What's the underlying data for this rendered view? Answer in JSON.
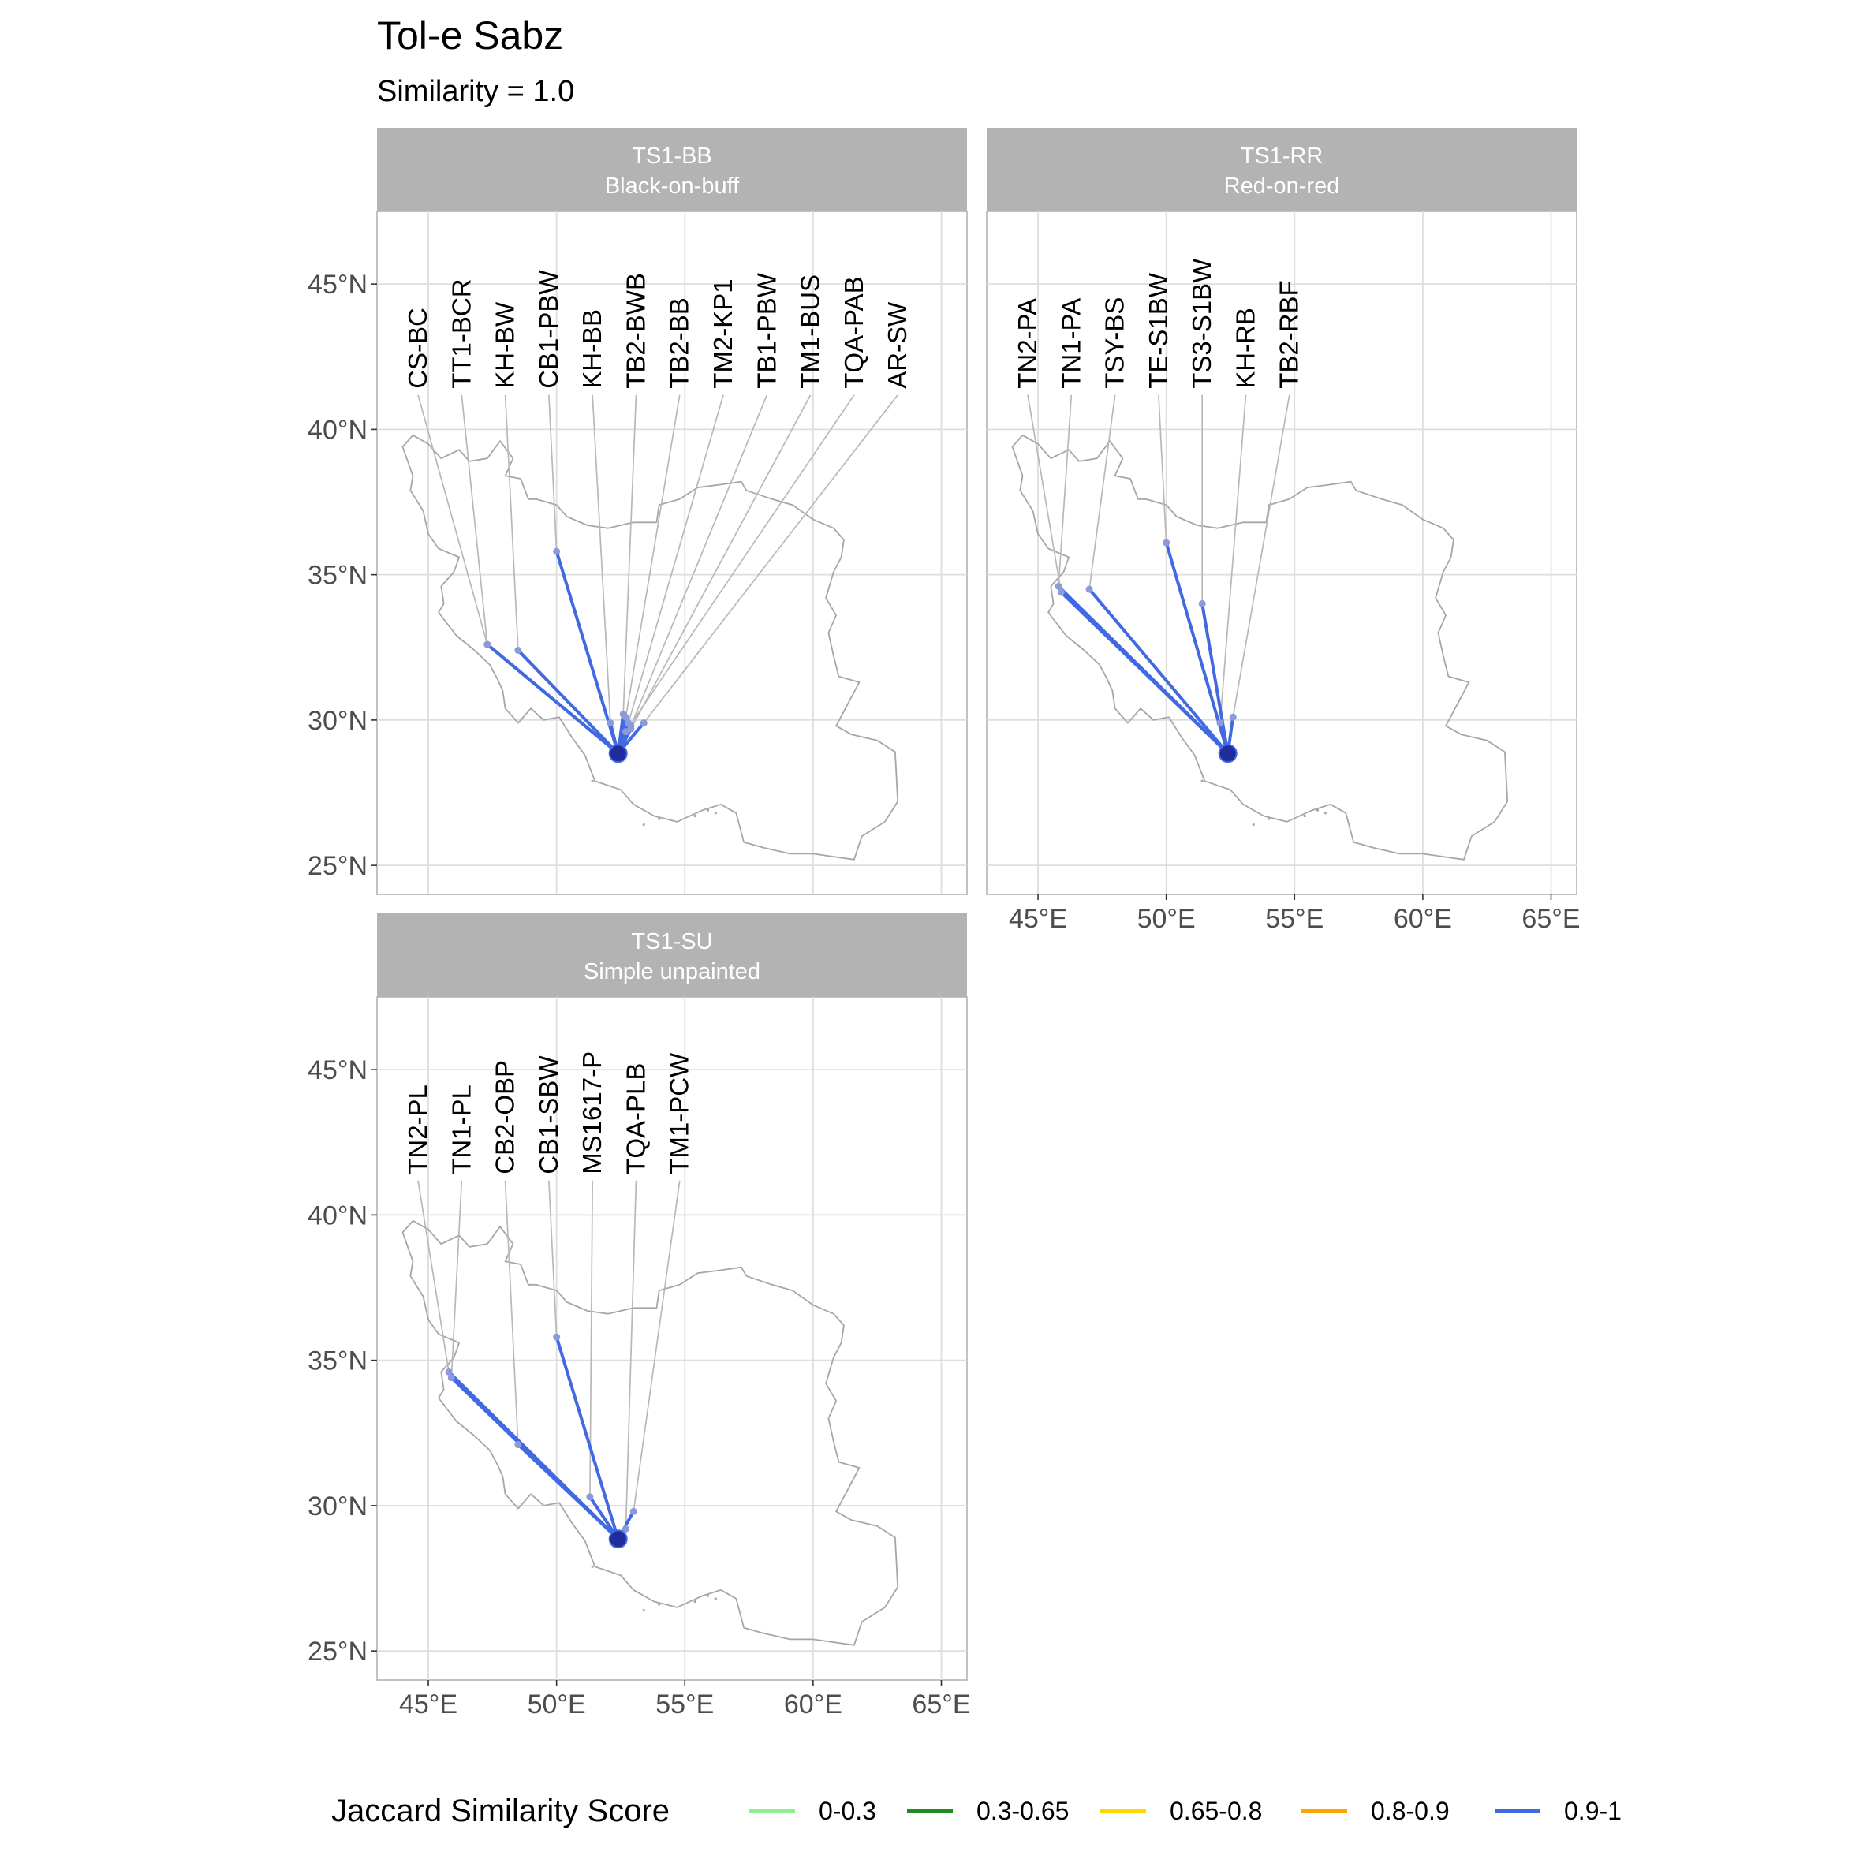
{
  "title": "Tol-e Sabz",
  "subtitle": "Similarity = 1.0",
  "map": {
    "x_ticks": [
      {
        "value": 45,
        "label": "45°E"
      },
      {
        "value": 50,
        "label": "50°E"
      },
      {
        "value": 55,
        "label": "55°E"
      },
      {
        "value": 60,
        "label": "60°E"
      },
      {
        "value": 65,
        "label": "65°E"
      }
    ],
    "y_ticks": [
      {
        "value": 25,
        "label": "25°N"
      },
      {
        "value": 30,
        "label": "30°N"
      },
      {
        "value": 35,
        "label": "35°N"
      },
      {
        "value": 40,
        "label": "40°N"
      },
      {
        "value": 45,
        "label": "45°N"
      }
    ],
    "lon_range": [
      43,
      66
    ],
    "lat_range": [
      24,
      47.5
    ],
    "focal_site": {
      "lon": 52.4,
      "lat": 28.85
    },
    "country_outline": [
      [
        44.0,
        39.4
      ],
      [
        44.4,
        39.8
      ],
      [
        45.0,
        39.5
      ],
      [
        45.5,
        39.0
      ],
      [
        46.2,
        39.3
      ],
      [
        46.6,
        38.9
      ],
      [
        47.3,
        39.0
      ],
      [
        47.8,
        39.6
      ],
      [
        48.3,
        39.0
      ],
      [
        48.0,
        38.4
      ],
      [
        48.6,
        38.3
      ],
      [
        48.9,
        37.6
      ],
      [
        49.2,
        37.6
      ],
      [
        50.0,
        37.4
      ],
      [
        50.4,
        37.0
      ],
      [
        51.2,
        36.7
      ],
      [
        52.0,
        36.6
      ],
      [
        53.0,
        36.8
      ],
      [
        53.9,
        36.8
      ],
      [
        54.0,
        37.4
      ],
      [
        54.8,
        37.6
      ],
      [
        55.5,
        38.0
      ],
      [
        56.4,
        38.1
      ],
      [
        57.2,
        38.2
      ],
      [
        57.4,
        37.9
      ],
      [
        58.4,
        37.6
      ],
      [
        59.2,
        37.4
      ],
      [
        60.0,
        36.9
      ],
      [
        60.8,
        36.6
      ],
      [
        61.2,
        36.2
      ],
      [
        61.1,
        35.6
      ],
      [
        60.8,
        35.1
      ],
      [
        60.5,
        34.2
      ],
      [
        60.9,
        33.6
      ],
      [
        60.6,
        33.0
      ],
      [
        60.8,
        32.2
      ],
      [
        61.0,
        31.5
      ],
      [
        61.8,
        31.3
      ],
      [
        61.5,
        30.8
      ],
      [
        60.9,
        29.8
      ],
      [
        61.5,
        29.5
      ],
      [
        62.5,
        29.3
      ],
      [
        63.2,
        28.9
      ],
      [
        63.3,
        27.2
      ],
      [
        62.8,
        26.5
      ],
      [
        61.9,
        26.0
      ],
      [
        61.6,
        25.2
      ],
      [
        60.8,
        25.3
      ],
      [
        60.0,
        25.4
      ],
      [
        59.1,
        25.4
      ],
      [
        58.1,
        25.6
      ],
      [
        57.3,
        25.8
      ],
      [
        57.0,
        26.8
      ],
      [
        56.4,
        27.1
      ],
      [
        55.7,
        26.9
      ],
      [
        54.7,
        26.5
      ],
      [
        53.8,
        26.7
      ],
      [
        53.0,
        27.1
      ],
      [
        52.5,
        27.6
      ],
      [
        51.5,
        27.9
      ],
      [
        51.1,
        28.8
      ],
      [
        50.6,
        29.4
      ],
      [
        50.1,
        30.1
      ],
      [
        49.5,
        30.0
      ],
      [
        49.0,
        30.4
      ],
      [
        48.5,
        29.9
      ],
      [
        48.0,
        30.4
      ],
      [
        47.9,
        31.0
      ],
      [
        47.7,
        31.4
      ],
      [
        47.4,
        31.9
      ],
      [
        46.8,
        32.4
      ],
      [
        46.1,
        32.9
      ],
      [
        45.4,
        33.7
      ],
      [
        45.6,
        34.0
      ],
      [
        45.5,
        34.6
      ],
      [
        46.0,
        35.1
      ],
      [
        46.2,
        35.6
      ],
      [
        45.4,
        35.9
      ],
      [
        45.0,
        36.4
      ],
      [
        44.8,
        37.2
      ],
      [
        44.3,
        37.9
      ],
      [
        44.4,
        38.4
      ],
      [
        44.0,
        39.4
      ]
    ],
    "islands": [
      [
        55.9,
        26.9
      ],
      [
        56.2,
        26.8
      ],
      [
        55.4,
        26.7
      ],
      [
        54.0,
        26.6
      ],
      [
        53.4,
        26.4
      ],
      [
        51.4,
        27.9
      ]
    ]
  },
  "panels": [
    {
      "id": "TS1-BB",
      "strip_line1": "TS1-BB",
      "strip_line2": "Black-on-buff",
      "label_lat": 41.4,
      "sites": [
        {
          "label": "CS-BC",
          "label_lon": 44.6,
          "lon": 47.3,
          "lat": 32.6
        },
        {
          "label": "TT1-BCR",
          "label_lon": 46.3,
          "lon": 47.3,
          "lat": 32.6
        },
        {
          "label": "KH-BW",
          "label_lon": 48.0,
          "lon": 48.5,
          "lat": 32.4
        },
        {
          "label": "CB1-PBW",
          "label_lon": 49.7,
          "lon": 50.0,
          "lat": 35.8
        },
        {
          "label": "KH-BB",
          "label_lon": 51.4,
          "lon": 52.1,
          "lat": 29.9
        },
        {
          "label": "TB2-BWB",
          "label_lon": 53.1,
          "lon": 52.6,
          "lat": 30.2
        },
        {
          "label": "TB2-BB",
          "label_lon": 54.8,
          "lon": 52.7,
          "lat": 30.1
        },
        {
          "label": "TM2-KP1",
          "label_lon": 56.5,
          "lon": 52.8,
          "lat": 29.9
        },
        {
          "label": "TB1-PBW",
          "label_lon": 58.2,
          "lon": 52.9,
          "lat": 29.8
        },
        {
          "label": "TM1-BUS",
          "label_lon": 59.9,
          "lon": 52.9,
          "lat": 29.7
        },
        {
          "label": "TQA-PAB",
          "label_lon": 61.6,
          "lon": 52.7,
          "lat": 29.6
        },
        {
          "label": "AR-SW",
          "label_lon": 63.3,
          "lon": 53.4,
          "lat": 29.9
        }
      ]
    },
    {
      "id": "TS1-RR",
      "strip_line1": "TS1-RR",
      "strip_line2": "Red-on-red",
      "label_lat": 41.4,
      "sites": [
        {
          "label": "TN2-PA",
          "label_lon": 44.6,
          "lon": 45.9,
          "lat": 34.4
        },
        {
          "label": "TN1-PA",
          "label_lon": 46.3,
          "lon": 45.8,
          "lat": 34.6
        },
        {
          "label": "TSY-BS",
          "label_lon": 48.0,
          "lon": 47.0,
          "lat": 34.5
        },
        {
          "label": "TE-S1BW",
          "label_lon": 49.7,
          "lon": 50.0,
          "lat": 36.1
        },
        {
          "label": "TS3-S1BW",
          "label_lon": 51.4,
          "lon": 51.4,
          "lat": 34.0
        },
        {
          "label": "KH-RB",
          "label_lon": 53.1,
          "lon": 52.1,
          "lat": 29.9
        },
        {
          "label": "TB2-RBF",
          "label_lon": 54.8,
          "lon": 52.6,
          "lat": 30.1
        }
      ]
    },
    {
      "id": "TS1-SU",
      "strip_line1": "TS1-SU",
      "strip_line2": "Simple unpainted",
      "label_lat": 41.4,
      "sites": [
        {
          "label": "TN2-PL",
          "label_lon": 44.6,
          "lon": 45.8,
          "lat": 34.6
        },
        {
          "label": "TN1-PL",
          "label_lon": 46.3,
          "lon": 45.9,
          "lat": 34.4
        },
        {
          "label": "CB2-OBP",
          "label_lon": 48.0,
          "lon": 48.5,
          "lat": 32.1
        },
        {
          "label": "CB1-SBW",
          "label_lon": 49.7,
          "lon": 50.0,
          "lat": 35.8
        },
        {
          "label": "MS1617-P",
          "label_lon": 51.4,
          "lon": 51.3,
          "lat": 30.3
        },
        {
          "label": "TQA-PLB",
          "label_lon": 53.1,
          "lon": 52.7,
          "lat": 29.2
        },
        {
          "label": "TM1-PCW",
          "label_lon": 54.8,
          "lon": 53.0,
          "lat": 29.8
        }
      ]
    }
  ],
  "legend": {
    "title": "Jaccard Similarity Score",
    "items": [
      {
        "label": "0-0.3",
        "color": "#90ee90"
      },
      {
        "label": "0.3-0.65",
        "color": "#228b22"
      },
      {
        "label": "0.65-0.8",
        "color": "#ffd700"
      },
      {
        "label": "0.8-0.9",
        "color": "#ffa500"
      },
      {
        "label": "0.9-1",
        "color": "#4169e1"
      }
    ]
  },
  "colors": {
    "connection": "#4169e1",
    "strip": "#b3b3b3"
  }
}
